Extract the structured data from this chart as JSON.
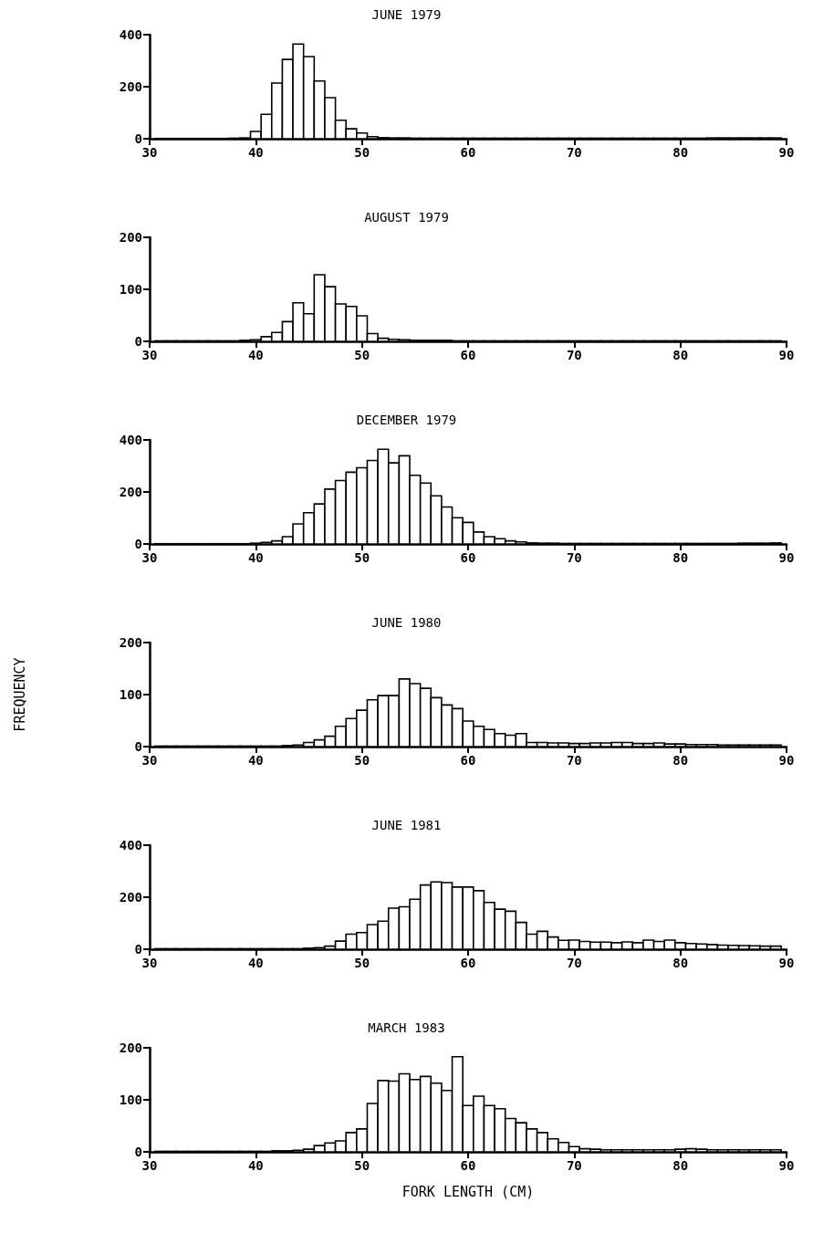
{
  "chart_data": [
    {
      "type": "histogram",
      "title": "JUNE 1979",
      "bins": [
        30.5,
        31.5,
        32.5,
        33.5,
        34.5,
        35.5,
        36.5,
        37.5,
        38.5,
        39.5,
        40.5,
        41.5,
        42.5,
        43.5,
        44.5,
        45.5,
        46.5,
        47.5,
        48.5,
        49.5,
        50.5,
        51.5,
        52.5,
        53.5,
        54.5,
        55.5,
        56.5,
        57.5,
        58.5,
        59.5,
        60.5,
        61.5,
        62.5,
        63.5,
        64.5,
        65.5,
        66.5,
        67.5,
        68.5,
        69.5,
        70.5,
        71.5,
        72.5,
        73.5,
        74.5,
        75.5,
        76.5,
        77.5,
        78.5,
        79.5,
        80.5,
        81.5,
        82.5,
        83.5,
        84.5,
        85.5,
        86.5,
        87.5,
        88.5,
        89.5
      ],
      "values": [
        1,
        1,
        1,
        1,
        1,
        1,
        1,
        2,
        3,
        28,
        94,
        214,
        305,
        364,
        316,
        222,
        158,
        71,
        38,
        22,
        8,
        4,
        3,
        3,
        2,
        2,
        2,
        2,
        2,
        2,
        2,
        2,
        2,
        2,
        2,
        2,
        2,
        2,
        2,
        2,
        2,
        2,
        2,
        2,
        2,
        2,
        2,
        2,
        2,
        2,
        2,
        2,
        3,
        3,
        3,
        3,
        3,
        3,
        3
      ],
      "xlim": [
        30,
        90
      ],
      "xticks": [
        30,
        40,
        50,
        60,
        70,
        80,
        90
      ],
      "ylim": [
        0,
        400
      ],
      "yticks": [
        0,
        200,
        400
      ]
    },
    {
      "type": "histogram",
      "title": "AUGUST 1979",
      "bins": [
        30.5,
        31.5,
        32.5,
        33.5,
        34.5,
        35.5,
        36.5,
        37.5,
        38.5,
        39.5,
        40.5,
        41.5,
        42.5,
        43.5,
        44.5,
        45.5,
        46.5,
        47.5,
        48.5,
        49.5,
        50.5,
        51.5,
        52.5,
        53.5,
        54.5,
        55.5,
        56.5,
        57.5,
        58.5,
        59.5,
        60.5,
        61.5,
        62.5,
        63.5,
        64.5,
        65.5,
        66.5,
        67.5,
        68.5,
        69.5,
        70.5,
        71.5,
        72.5,
        73.5,
        74.5,
        75.5,
        76.5,
        77.5,
        78.5,
        79.5,
        80.5,
        81.5,
        82.5,
        83.5,
        84.5,
        85.5,
        86.5,
        87.5,
        88.5,
        89.5
      ],
      "values": [
        1,
        1,
        1,
        1,
        1,
        1,
        1,
        1,
        2,
        3,
        9,
        17,
        38,
        74,
        53,
        128,
        105,
        72,
        67,
        49,
        15,
        6,
        4,
        3,
        2,
        2,
        2,
        2,
        1,
        1,
        1,
        1,
        1,
        1,
        1,
        1,
        1,
        1,
        1,
        1,
        1,
        1,
        1,
        1,
        1,
        1,
        1,
        1,
        1,
        1,
        1,
        1,
        1,
        1,
        1,
        1,
        1,
        1,
        1
      ],
      "xlim": [
        30,
        90
      ],
      "xticks": [
        30,
        40,
        50,
        60,
        70,
        80,
        90
      ],
      "ylim": [
        0,
        200
      ],
      "yticks": [
        0,
        100,
        200
      ]
    },
    {
      "type": "histogram",
      "title": "DECEMBER 1979",
      "bins": [
        30.5,
        31.5,
        32.5,
        33.5,
        34.5,
        35.5,
        36.5,
        37.5,
        38.5,
        39.5,
        40.5,
        41.5,
        42.5,
        43.5,
        44.5,
        45.5,
        46.5,
        47.5,
        48.5,
        49.5,
        50.5,
        51.5,
        52.5,
        53.5,
        54.5,
        55.5,
        56.5,
        57.5,
        58.5,
        59.5,
        60.5,
        61.5,
        62.5,
        63.5,
        64.5,
        65.5,
        66.5,
        67.5,
        68.5,
        69.5,
        70.5,
        71.5,
        72.5,
        73.5,
        74.5,
        75.5,
        76.5,
        77.5,
        78.5,
        79.5,
        80.5,
        81.5,
        82.5,
        83.5,
        84.5,
        85.5,
        86.5,
        87.5,
        88.5,
        89.5
      ],
      "values": [
        1,
        1,
        1,
        1,
        1,
        1,
        1,
        1,
        1,
        3,
        6,
        12,
        28,
        77,
        120,
        154,
        211,
        244,
        276,
        293,
        321,
        364,
        312,
        339,
        264,
        234,
        185,
        142,
        101,
        83,
        46,
        28,
        20,
        12,
        8,
        4,
        3,
        3,
        2,
        2,
        2,
        2,
        2,
        2,
        2,
        2,
        2,
        2,
        2,
        2,
        2,
        2,
        2,
        2,
        2,
        3,
        3,
        3,
        4
      ],
      "xlim": [
        30,
        90
      ],
      "xticks": [
        30,
        40,
        50,
        60,
        70,
        80,
        90
      ],
      "ylim": [
        0,
        400
      ],
      "yticks": [
        0,
        200,
        400
      ]
    },
    {
      "type": "histogram",
      "title": "JUNE 1980",
      "ylabel": "FREQUENCY",
      "bins": [
        30.5,
        31.5,
        32.5,
        33.5,
        34.5,
        35.5,
        36.5,
        37.5,
        38.5,
        39.5,
        40.5,
        41.5,
        42.5,
        43.5,
        44.5,
        45.5,
        46.5,
        47.5,
        48.5,
        49.5,
        50.5,
        51.5,
        52.5,
        53.5,
        54.5,
        55.5,
        56.5,
        57.5,
        58.5,
        59.5,
        60.5,
        61.5,
        62.5,
        63.5,
        64.5,
        65.5,
        66.5,
        67.5,
        68.5,
        69.5,
        70.5,
        71.5,
        72.5,
        73.5,
        74.5,
        75.5,
        76.5,
        77.5,
        78.5,
        79.5,
        80.5,
        81.5,
        82.5,
        83.5,
        84.5,
        85.5,
        86.5,
        87.5,
        88.5,
        89.5
      ],
      "values": [
        1,
        1,
        1,
        1,
        1,
        1,
        1,
        1,
        1,
        1,
        1,
        1,
        2,
        3,
        8,
        13,
        20,
        39,
        54,
        70,
        90,
        98,
        98,
        130,
        121,
        112,
        94,
        80,
        73,
        49,
        39,
        33,
        25,
        22,
        25,
        8,
        8,
        7,
        7,
        6,
        6,
        7,
        7,
        8,
        8,
        6,
        6,
        7,
        5,
        5,
        4,
        4,
        4,
        3,
        3,
        3,
        3,
        3,
        3
      ],
      "xlim": [
        30,
        90
      ],
      "xticks": [
        30,
        40,
        50,
        60,
        70,
        80,
        90
      ],
      "ylim": [
        0,
        200
      ],
      "yticks": [
        0,
        100,
        200
      ]
    },
    {
      "type": "histogram",
      "title": "JUNE 1981",
      "bins": [
        30.5,
        31.5,
        32.5,
        33.5,
        34.5,
        35.5,
        36.5,
        37.5,
        38.5,
        39.5,
        40.5,
        41.5,
        42.5,
        43.5,
        44.5,
        45.5,
        46.5,
        47.5,
        48.5,
        49.5,
        50.5,
        51.5,
        52.5,
        53.5,
        54.5,
        55.5,
        56.5,
        57.5,
        58.5,
        59.5,
        60.5,
        61.5,
        62.5,
        63.5,
        64.5,
        65.5,
        66.5,
        67.5,
        68.5,
        69.5,
        70.5,
        71.5,
        72.5,
        73.5,
        74.5,
        75.5,
        76.5,
        77.5,
        78.5,
        79.5,
        80.5,
        81.5,
        82.5,
        83.5,
        84.5,
        85.5,
        86.5,
        87.5,
        88.5,
        89.5
      ],
      "values": [
        2,
        2,
        2,
        2,
        2,
        2,
        2,
        2,
        2,
        2,
        2,
        2,
        2,
        2,
        4,
        6,
        12,
        31,
        58,
        64,
        95,
        108,
        158,
        163,
        192,
        247,
        259,
        256,
        239,
        239,
        225,
        180,
        154,
        146,
        103,
        58,
        69,
        47,
        34,
        35,
        30,
        27,
        27,
        25,
        28,
        25,
        35,
        30,
        35,
        25,
        22,
        20,
        18,
        16,
        15,
        14,
        13,
        12,
        12
      ],
      "xlim": [
        30,
        90
      ],
      "xticks": [
        30,
        40,
        50,
        60,
        70,
        80,
        90
      ],
      "ylim": [
        0,
        400
      ],
      "yticks": [
        0,
        200,
        400
      ]
    },
    {
      "type": "histogram",
      "title": "MARCH 1983",
      "xlabel": "FORK LENGTH (CM)",
      "bins": [
        30.5,
        31.5,
        32.5,
        33.5,
        34.5,
        35.5,
        36.5,
        37.5,
        38.5,
        39.5,
        40.5,
        41.5,
        42.5,
        43.5,
        44.5,
        45.5,
        46.5,
        47.5,
        48.5,
        49.5,
        50.5,
        51.5,
        52.5,
        53.5,
        54.5,
        55.5,
        56.5,
        57.5,
        58.5,
        59.5,
        60.5,
        61.5,
        62.5,
        63.5,
        64.5,
        65.5,
        66.5,
        67.5,
        68.5,
        69.5,
        70.5,
        71.5,
        72.5,
        73.5,
        74.5,
        75.5,
        76.5,
        77.5,
        78.5,
        79.5,
        80.5,
        81.5,
        82.5,
        83.5,
        84.5,
        85.5,
        86.5,
        87.5,
        88.5,
        89.5
      ],
      "values": [
        1,
        1,
        1,
        1,
        1,
        1,
        1,
        1,
        1,
        1,
        1,
        2,
        2,
        3,
        5,
        12,
        17,
        21,
        37,
        44,
        93,
        137,
        136,
        150,
        139,
        145,
        132,
        118,
        183,
        89,
        107,
        89,
        83,
        64,
        56,
        44,
        37,
        25,
        18,
        10,
        6,
        5,
        4,
        4,
        4,
        4,
        4,
        4,
        4,
        5,
        6,
        5,
        4,
        4,
        4,
        4,
        4,
        4,
        4
      ],
      "xlim": [
        30,
        90
      ],
      "xticks": [
        30,
        40,
        50,
        60,
        70,
        80,
        90
      ],
      "ylim": [
        0,
        200
      ],
      "yticks": [
        0,
        100,
        200
      ]
    }
  ]
}
